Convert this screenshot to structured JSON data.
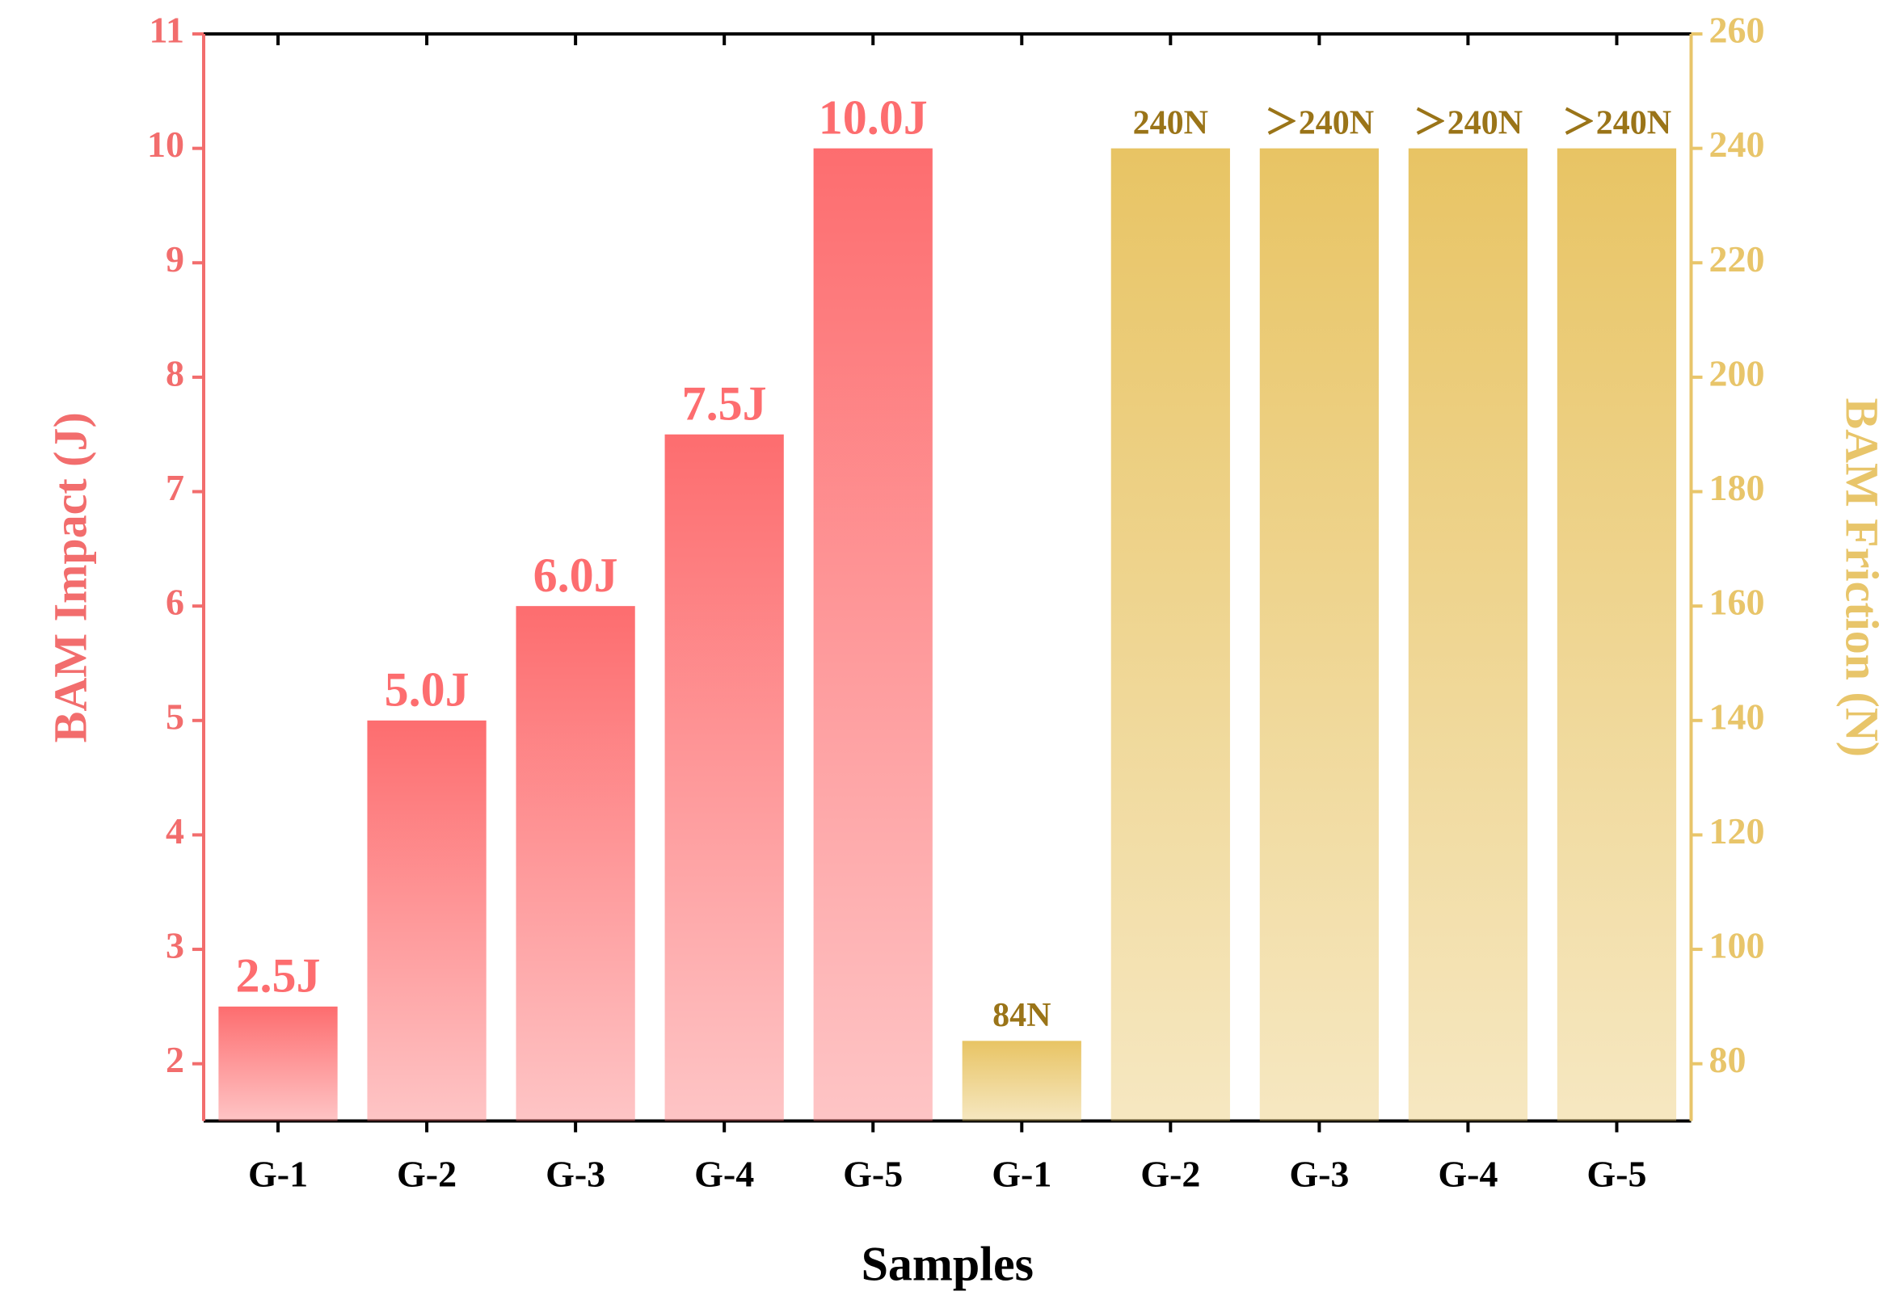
{
  "chart_data": {
    "type": "bar",
    "xlabel": "Samples",
    "ylabel": "BAM Impact (J)",
    "y2label": "BAM Friction (N)",
    "categories": [
      "G-1",
      "G-2",
      "G-3",
      "G-4",
      "G-5",
      "G-1",
      "G-2",
      "G-3",
      "G-4",
      "G-5"
    ],
    "series": [
      {
        "name": "BAM Impact",
        "color": "#fd6d6f",
        "axis": "y",
        "values": [
          2.5,
          5.0,
          6.0,
          7.5,
          10.0,
          null,
          null,
          null,
          null,
          null
        ],
        "value_labels": [
          "2.5J",
          "5.0J",
          "6.0J",
          "7.5J",
          "10.0J",
          null,
          null,
          null,
          null,
          null
        ]
      },
      {
        "name": "BAM Friction",
        "color": "#e8c464",
        "axis": "y2",
        "values": [
          null,
          null,
          null,
          null,
          null,
          84,
          240,
          240,
          240,
          240
        ],
        "value_labels": [
          null,
          null,
          null,
          null,
          null,
          "84N",
          "240N",
          "＞240N",
          "＞240N",
          "＞240N"
        ]
      }
    ],
    "ylim": [
      1.5,
      11
    ],
    "yticks": [
      2,
      3,
      4,
      5,
      6,
      7,
      8,
      9,
      10,
      11
    ],
    "y2lim": [
      70,
      260
    ],
    "y2ticks": [
      80,
      100,
      120,
      140,
      160,
      180,
      200,
      220,
      240,
      260
    ],
    "yaxis_color": "#f26d6d",
    "y2axis_color": "#e8c56a",
    "y2label_text_color": "#9a7418"
  }
}
